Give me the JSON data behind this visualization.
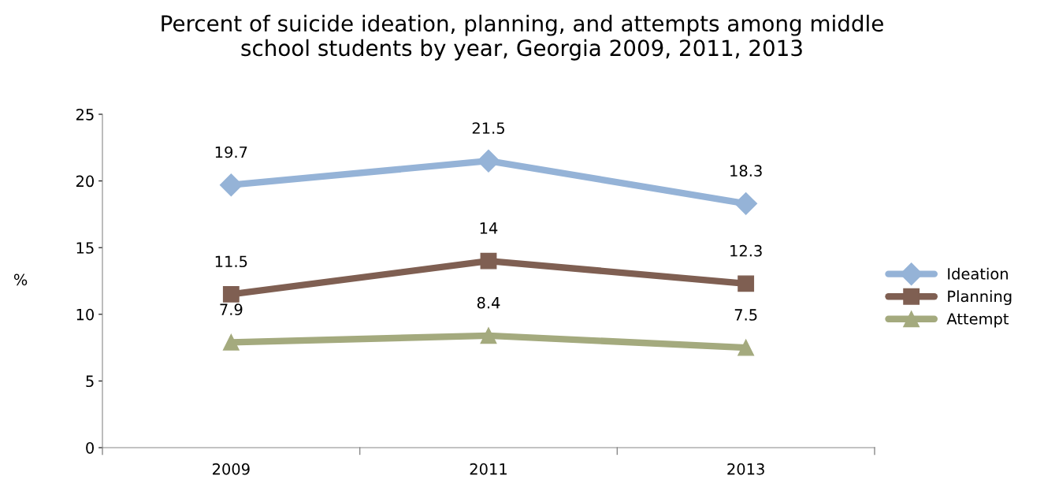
{
  "chart_data": {
    "type": "line",
    "title": "Percent of suicide ideation, planning, and attempts among middle\nschool students by year, Georgia 2009, 2011, 2013",
    "ylabel": "%",
    "categories": [
      "2009",
      "2011",
      "2013"
    ],
    "series": [
      {
        "name": "Ideation",
        "color": "#95b3d7",
        "marker": "diamond",
        "values": [
          19.7,
          21.5,
          18.3
        ]
      },
      {
        "name": "Planning",
        "color": "#7f5f52",
        "marker": "square",
        "values": [
          11.5,
          14,
          12.3
        ]
      },
      {
        "name": "Attempt",
        "color": "#a4aa7e",
        "marker": "triangle",
        "values": [
          7.9,
          8.4,
          7.5
        ]
      }
    ],
    "ylim": [
      0,
      25
    ],
    "yticks": [
      0,
      5,
      10,
      15,
      20,
      25
    ],
    "grid": false,
    "legend": "right",
    "data_labels": true,
    "line_style": "solid"
  }
}
